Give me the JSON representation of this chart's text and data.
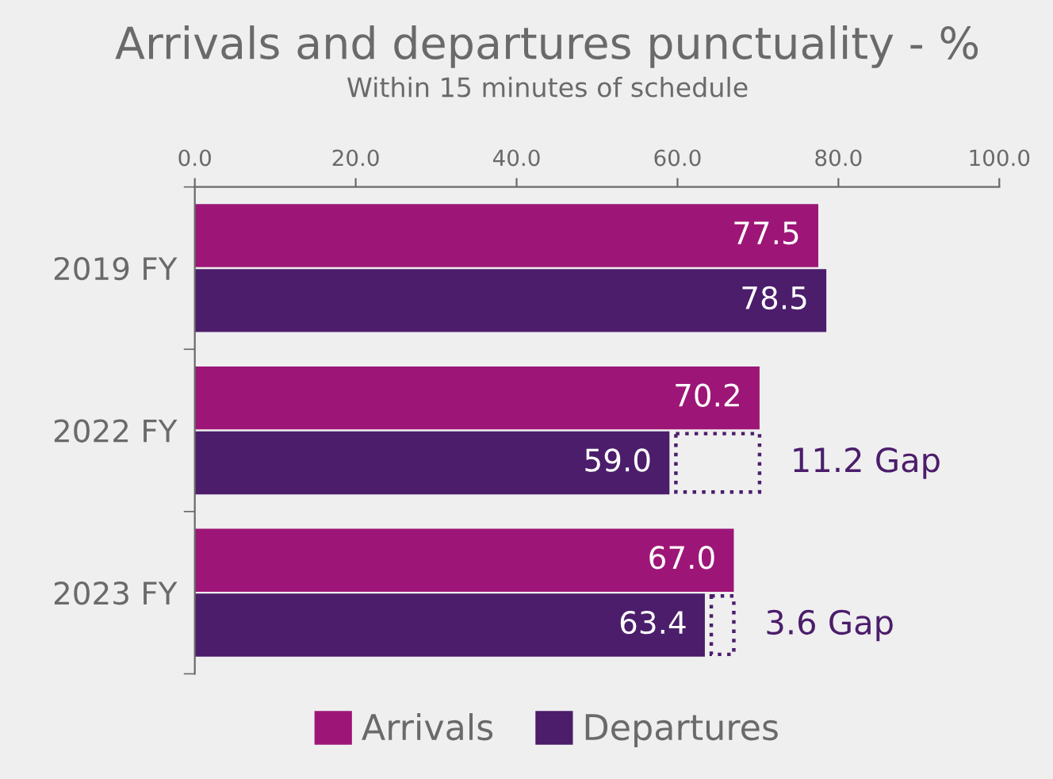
{
  "chart_data": {
    "type": "bar",
    "orientation": "horizontal",
    "title": "Arrivals and departures punctuality - %",
    "subtitle": "Within 15 minutes of schedule",
    "categories": [
      "2019 FY",
      "2022 FY",
      "2023 FY"
    ],
    "series": [
      {
        "name": "Arrivals",
        "color": "#9d1677",
        "values": [
          77.5,
          70.2,
          67.0
        ],
        "value_labels": [
          "77.5",
          "70.2",
          "67.0"
        ]
      },
      {
        "name": "Departures",
        "color": "#4b1d6b",
        "values": [
          78.5,
          59.0,
          63.4
        ],
        "value_labels": [
          "78.5",
          "59.0",
          "63.4"
        ]
      }
    ],
    "xlim": [
      0,
      100
    ],
    "xticks": [
      {
        "value": 0,
        "label": "0.0"
      },
      {
        "value": 20,
        "label": "20.0"
      },
      {
        "value": 40,
        "label": "40.0"
      },
      {
        "value": 60,
        "label": "60.0"
      },
      {
        "value": 80,
        "label": "80.0"
      },
      {
        "value": 100,
        "label": "100.0"
      }
    ],
    "annotations": [
      {
        "text": "11.2 Gap",
        "x": 70.2,
        "y": "2022 FY"
      },
      {
        "text": "3.6 Gap",
        "x": 67.0,
        "y": "2023 FY"
      }
    ],
    "grid": false,
    "legend": "bottom"
  }
}
